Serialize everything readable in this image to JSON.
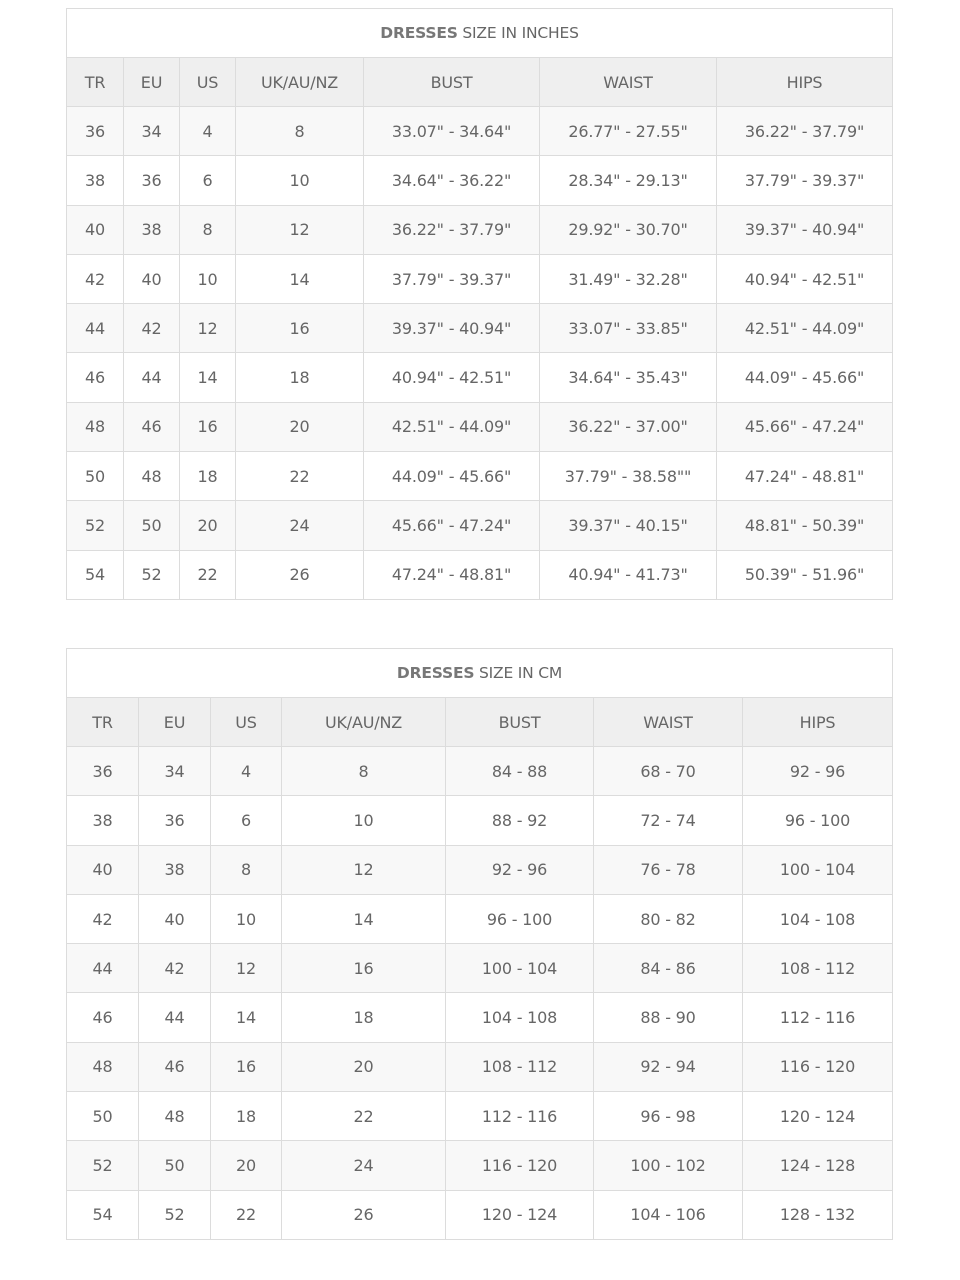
{
  "tables": [
    {
      "title_bold": "DRESSES",
      "title_rest": " SIZE IN INCHES",
      "headers": [
        "TR",
        "EU",
        "US",
        "UK/AU/NZ",
        "BUST",
        "WAIST",
        "HIPS"
      ],
      "rows": [
        [
          "36",
          "34",
          "4",
          "8",
          "33.07\" - 34.64\"",
          "26.77\" - 27.55\"",
          "36.22\" - 37.79\""
        ],
        [
          "38",
          "36",
          "6",
          "10",
          "34.64\" - 36.22\"",
          "28.34\" - 29.13\"",
          "37.79\" - 39.37\""
        ],
        [
          "40",
          "38",
          "8",
          "12",
          "36.22\" - 37.79\"",
          "29.92\" - 30.70\"",
          "39.37\" - 40.94\""
        ],
        [
          "42",
          "40",
          "10",
          "14",
          "37.79\" - 39.37\"",
          "31.49\" - 32.28\"",
          "40.94\" - 42.51\""
        ],
        [
          "44",
          "42",
          "12",
          "16",
          "39.37\" - 40.94\"",
          "33.07\" - 33.85\"",
          "42.51\" - 44.09\""
        ],
        [
          "46",
          "44",
          "14",
          "18",
          "40.94\" - 42.51\"",
          "34.64\" - 35.43\"",
          "44.09\" - 45.66\""
        ],
        [
          "48",
          "46",
          "16",
          "20",
          "42.51\" - 44.09\"",
          "36.22\" - 37.00\"",
          "45.66\" - 47.24\""
        ],
        [
          "50",
          "48",
          "18",
          "22",
          "44.09\" - 45.66\"",
          "37.79\" - 38.58\"\"",
          "47.24\" - 48.81\""
        ],
        [
          "52",
          "50",
          "20",
          "24",
          "45.66\" - 47.24\"",
          "39.37\" - 40.15\"",
          "48.81\" - 50.39\""
        ],
        [
          "54",
          "52",
          "22",
          "26",
          "47.24\" - 48.81\"",
          "40.94\" - 41.73\"",
          "50.39\" - 51.96\""
        ]
      ]
    },
    {
      "title_bold": "DRESSES",
      "title_rest": " SIZE IN CM",
      "headers": [
        "TR",
        "EU",
        "US",
        "UK/AU/NZ",
        "BUST",
        "WAIST",
        "HIPS"
      ],
      "rows": [
        [
          "36",
          "34",
          "4",
          "8",
          "84 - 88",
          "68 - 70",
          "92 - 96"
        ],
        [
          "38",
          "36",
          "6",
          "10",
          "88 - 92",
          "72 - 74",
          "96 - 100"
        ],
        [
          "40",
          "38",
          "8",
          "12",
          "92 - 96",
          "76 - 78",
          "100 - 104"
        ],
        [
          "42",
          "40",
          "10",
          "14",
          "96 - 100",
          "80 - 82",
          "104 - 108"
        ],
        [
          "44",
          "42",
          "12",
          "16",
          "100 - 104",
          "84 - 86",
          "108 - 112"
        ],
        [
          "46",
          "44",
          "14",
          "18",
          "104 - 108",
          "88 - 90",
          "112 - 116"
        ],
        [
          "48",
          "46",
          "16",
          "20",
          "108 - 112",
          "92 - 94",
          "116 - 120"
        ],
        [
          "50",
          "48",
          "18",
          "22",
          "112 - 116",
          "96 - 98",
          "120 - 124"
        ],
        [
          "52",
          "50",
          "20",
          "24",
          "116 - 120",
          "100 - 102",
          "124 - 128"
        ],
        [
          "54",
          "52",
          "22",
          "26",
          "120 - 124",
          "104 - 106",
          "128 - 132"
        ]
      ]
    }
  ]
}
